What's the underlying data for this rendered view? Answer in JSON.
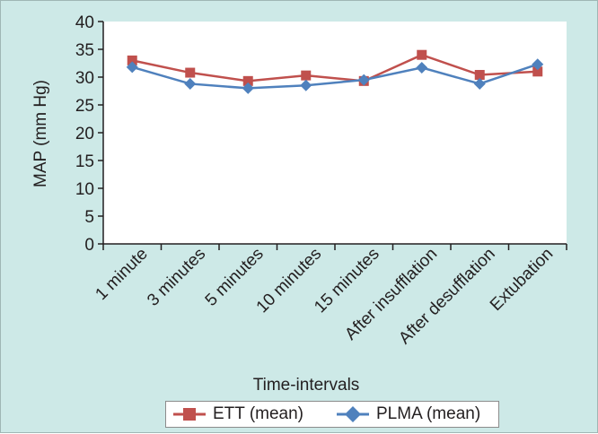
{
  "chart_data": {
    "type": "line",
    "ylabel": "MAP (mm Hg)",
    "xlabel": "Time-intervals",
    "ylim": [
      0,
      40
    ],
    "yticks": [
      0,
      5,
      10,
      15,
      20,
      25,
      30,
      35,
      40
    ],
    "categories": [
      "1 minute",
      "3 minutes",
      "5 minutes",
      "10 minutes",
      "15 minutes",
      "After insufflation",
      "After desufflation",
      "Extubation"
    ],
    "series": [
      {
        "name": "ETT (mean)",
        "color": "#c0504d",
        "marker": "square",
        "values": [
          33.0,
          30.8,
          29.3,
          30.3,
          29.3,
          34.0,
          30.4,
          31.0
        ]
      },
      {
        "name": "PLMA (mean)",
        "color": "#4f81bd",
        "marker": "diamond",
        "values": [
          31.8,
          28.8,
          28.0,
          28.5,
          29.5,
          31.7,
          28.8,
          32.3
        ]
      }
    ],
    "legend_position": "bottom",
    "grid": false
  }
}
